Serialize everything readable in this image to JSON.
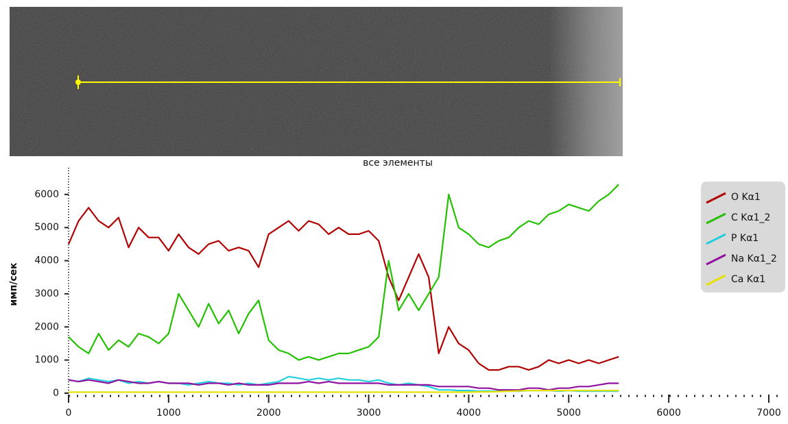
{
  "chart_data": {
    "type": "line",
    "title": "все элементы",
    "y_label": "имп/сек",
    "x": [
      0,
      100,
      200,
      300,
      400,
      500,
      600,
      700,
      800,
      900,
      1000,
      1100,
      1200,
      1300,
      1400,
      1500,
      1600,
      1700,
      1800,
      1900,
      2000,
      2100,
      2200,
      2300,
      2400,
      2500,
      2600,
      2700,
      2800,
      2900,
      3000,
      3100,
      3200,
      3300,
      3400,
      3500,
      3600,
      3700,
      3800,
      3900,
      4000,
      4100,
      4200,
      4300,
      4400,
      4500,
      4600,
      4700,
      4800,
      4900,
      5000,
      5100,
      5200,
      5300,
      5400,
      5500
    ],
    "xlim": [
      0,
      7000
    ],
    "xticks": [
      0,
      1000,
      2000,
      3000,
      4000,
      5000,
      6000,
      7000
    ],
    "ylim": [
      0,
      6700
    ],
    "yticks": [
      0,
      1000,
      2000,
      3000,
      4000,
      5000,
      6000
    ],
    "series": [
      {
        "name": "O Kα1",
        "color": "#b00000",
        "values": [
          4500,
          5200,
          5600,
          5200,
          5000,
          5300,
          4400,
          5000,
          4700,
          4700,
          4300,
          4800,
          4400,
          4200,
          4500,
          4600,
          4300,
          4400,
          4300,
          3800,
          4800,
          5000,
          5200,
          4900,
          5200,
          5100,
          4800,
          5000,
          4800,
          4800,
          4900,
          4600,
          3500,
          2800,
          3500,
          4200,
          3500,
          1200,
          2000,
          1500,
          1300,
          900,
          700,
          700,
          800,
          800,
          700,
          800,
          1000,
          900,
          1000,
          900,
          1000,
          900,
          1000,
          1100
        ]
      },
      {
        "name": "C Kα1_2",
        "color": "#22c000",
        "values": [
          1700,
          1400,
          1200,
          1800,
          1300,
          1600,
          1400,
          1800,
          1700,
          1500,
          1800,
          3000,
          2500,
          2000,
          2700,
          2100,
          2500,
          1800,
          2400,
          2800,
          1600,
          1300,
          1200,
          1000,
          1100,
          1000,
          1100,
          1200,
          1200,
          1300,
          1400,
          1700,
          4000,
          2500,
          3000,
          2500,
          3000,
          3500,
          6000,
          5000,
          4800,
          4500,
          4400,
          4600,
          4700,
          5000,
          5200,
          5100,
          5400,
          5500,
          5700,
          5600,
          5500,
          5800,
          6000,
          6300
        ]
      },
      {
        "name": "P Kα1",
        "color": "#20d0e0",
        "values": [
          400,
          350,
          450,
          400,
          350,
          400,
          300,
          350,
          300,
          350,
          300,
          300,
          250,
          300,
          350,
          300,
          300,
          250,
          300,
          250,
          300,
          350,
          500,
          450,
          400,
          450,
          400,
          450,
          400,
          400,
          350,
          400,
          300,
          250,
          300,
          250,
          200,
          100,
          100,
          80,
          80,
          60,
          60,
          60,
          60,
          60,
          80,
          80,
          80,
          60,
          80,
          60,
          60,
          60,
          60,
          60
        ]
      },
      {
        "name": "Na Kα1_2",
        "color": "#9010a0",
        "values": [
          400,
          350,
          400,
          350,
          300,
          400,
          350,
          300,
          300,
          350,
          300,
          300,
          300,
          250,
          300,
          300,
          250,
          300,
          250,
          250,
          250,
          300,
          300,
          300,
          350,
          300,
          350,
          300,
          300,
          300,
          300,
          300,
          250,
          250,
          250,
          250,
          250,
          200,
          200,
          200,
          200,
          150,
          150,
          100,
          100,
          100,
          150,
          150,
          100,
          150,
          150,
          200,
          200,
          250,
          300,
          300
        ]
      },
      {
        "name": "Ca Kα1",
        "color": "#e8e000",
        "values": [
          30,
          30,
          30,
          30,
          30,
          30,
          30,
          30,
          30,
          30,
          30,
          30,
          30,
          30,
          30,
          30,
          30,
          30,
          30,
          30,
          30,
          30,
          30,
          30,
          30,
          30,
          30,
          30,
          30,
          30,
          30,
          30,
          30,
          30,
          30,
          30,
          30,
          30,
          30,
          30,
          30,
          40,
          40,
          50,
          60,
          70,
          80,
          80,
          80,
          80,
          80,
          80,
          80,
          80,
          80,
          80
        ]
      }
    ]
  }
}
